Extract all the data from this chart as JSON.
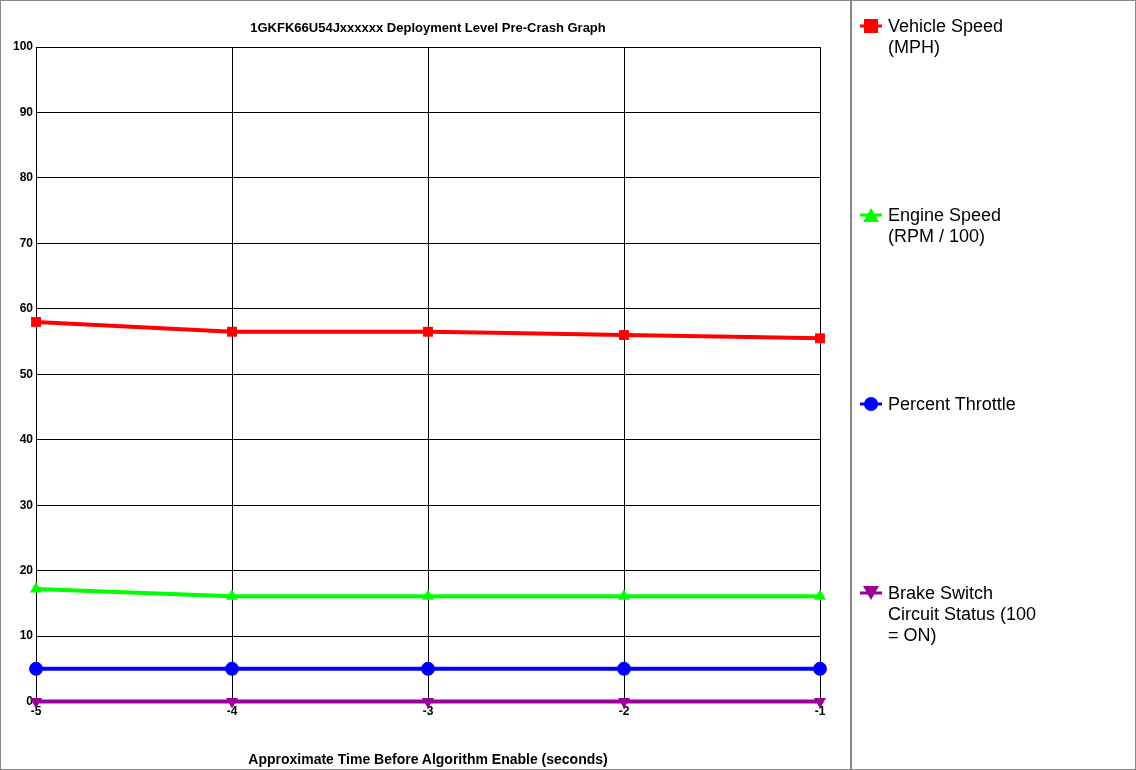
{
  "chart_data": {
    "type": "line",
    "title": "1GKFK66U54Jxxxxxx Deployment Level Pre-Crash Graph",
    "xlabel": "Approximate Time Before Algorithm Enable (seconds)",
    "x": [
      -5,
      -4,
      -3,
      -2,
      -1
    ],
    "xlim": [
      -5,
      -1
    ],
    "xticks": [
      -5,
      -4,
      -3,
      -2,
      -1
    ],
    "ylim": [
      0,
      100
    ],
    "yticks": [
      0,
      10,
      20,
      30,
      40,
      50,
      60,
      70,
      80,
      90,
      100
    ],
    "grid": true,
    "legend": "right",
    "line_style": "solid",
    "series": [
      {
        "name": "Vehicle Speed (MPH)",
        "color": "#ff0000",
        "marker": "square",
        "values": [
          58,
          56.5,
          56.5,
          56,
          55.5
        ]
      },
      {
        "name": "Engine Speed (RPM / 100)",
        "color": "#00ff00",
        "marker": "triangle",
        "values": [
          17.2,
          16.1,
          16.1,
          16.1,
          16.1
        ]
      },
      {
        "name": "Percent Throttle",
        "color": "#0000ff",
        "marker": "circle",
        "values": [
          5,
          5,
          5,
          5,
          5
        ]
      },
      {
        "name": "Brake Switch Circuit Status (100 = ON)",
        "color": "#990099",
        "marker": "triangle-down",
        "values": [
          0,
          0,
          0,
          0,
          0
        ]
      }
    ]
  }
}
